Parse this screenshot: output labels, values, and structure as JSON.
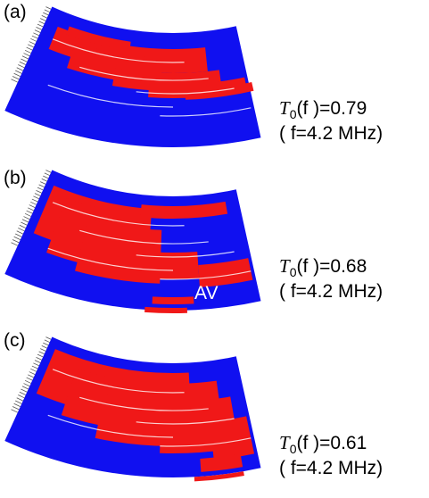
{
  "panels": [
    {
      "label": "(a)",
      "symbol": "T",
      "subscript": "0",
      "argument": "(f )",
      "value": "=0.79",
      "frequency": "( f=4.2 MHz)"
    },
    {
      "label": "(b)",
      "symbol": "T",
      "subscript": "0",
      "argument": "(f )",
      "value": "=0.68",
      "frequency": "( f=4.2 MHz)",
      "annotation": "AV"
    },
    {
      "label": "(c)",
      "symbol": "T",
      "subscript": "0",
      "argument": "(f )",
      "value": "=0.61",
      "frequency": "( f=4.2 MHz)"
    }
  ]
}
